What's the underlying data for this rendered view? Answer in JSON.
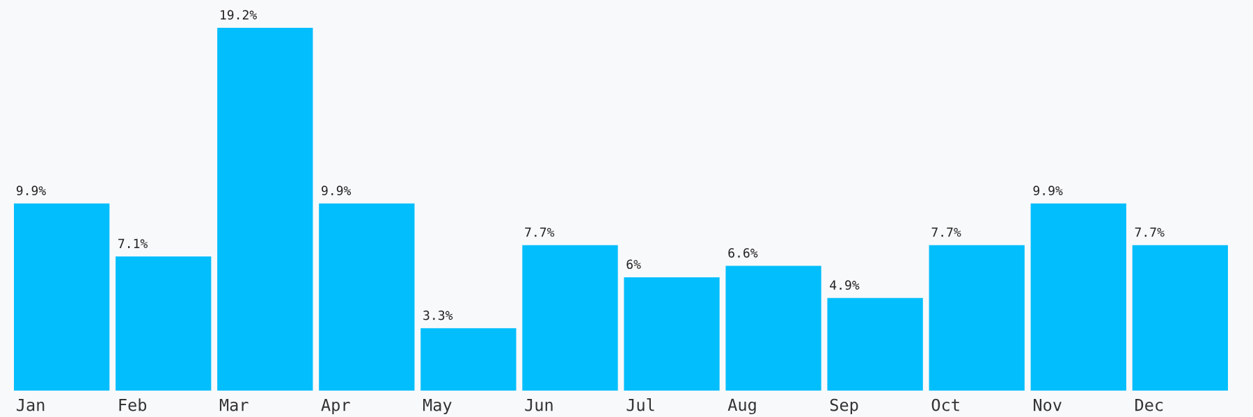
{
  "chart_data": {
    "type": "bar",
    "categories": [
      "Jan",
      "Feb",
      "Mar",
      "Apr",
      "May",
      "Jun",
      "Jul",
      "Aug",
      "Sep",
      "Oct",
      "Nov",
      "Dec"
    ],
    "values": [
      9.9,
      7.1,
      19.2,
      9.9,
      3.3,
      7.7,
      6,
      6.6,
      4.9,
      7.7,
      9.9,
      7.7
    ],
    "value_labels": [
      "9.9%",
      "7.1%",
      "19.2%",
      "9.9%",
      "3.3%",
      "7.7%",
      "6%",
      "6.6%",
      "4.9%",
      "7.7%",
      "9.9%",
      "7.7%"
    ],
    "color": "#03befc",
    "ylim": [
      0,
      19.2
    ]
  }
}
